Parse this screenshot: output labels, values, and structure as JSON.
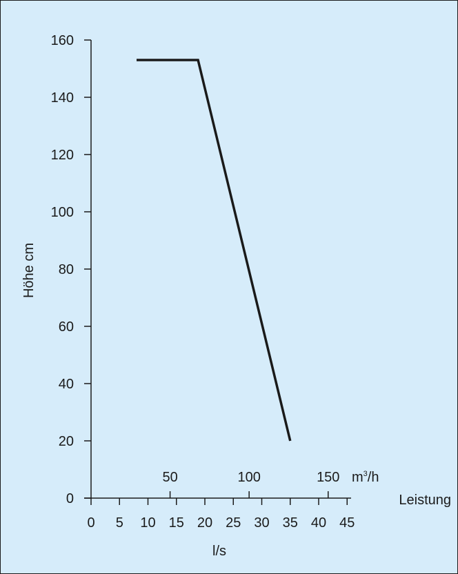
{
  "colors": {
    "background": "#d6ecfa",
    "line": "#1a1a1a"
  },
  "chart_data": {
    "type": "line",
    "title": "",
    "ylabel": "Höhe cm",
    "xlabel": "l/s",
    "x_secondary_label": "Leistung",
    "x_top_unit_base": "m",
    "x_top_unit_sup": "3",
    "x_top_unit_rest": "/h",
    "ylim": [
      0,
      160
    ],
    "xlim": [
      0,
      45
    ],
    "y_ticks": [
      0,
      20,
      40,
      60,
      80,
      100,
      120,
      140,
      160
    ],
    "x_ticks": [
      0,
      5,
      10,
      15,
      20,
      25,
      30,
      35,
      40,
      45
    ],
    "x_top_ticks": [
      50,
      100,
      150
    ],
    "grid": false,
    "series": [
      {
        "x": [
          8,
          18.8,
          35
        ],
        "y": [
          153,
          153,
          20
        ]
      }
    ]
  }
}
